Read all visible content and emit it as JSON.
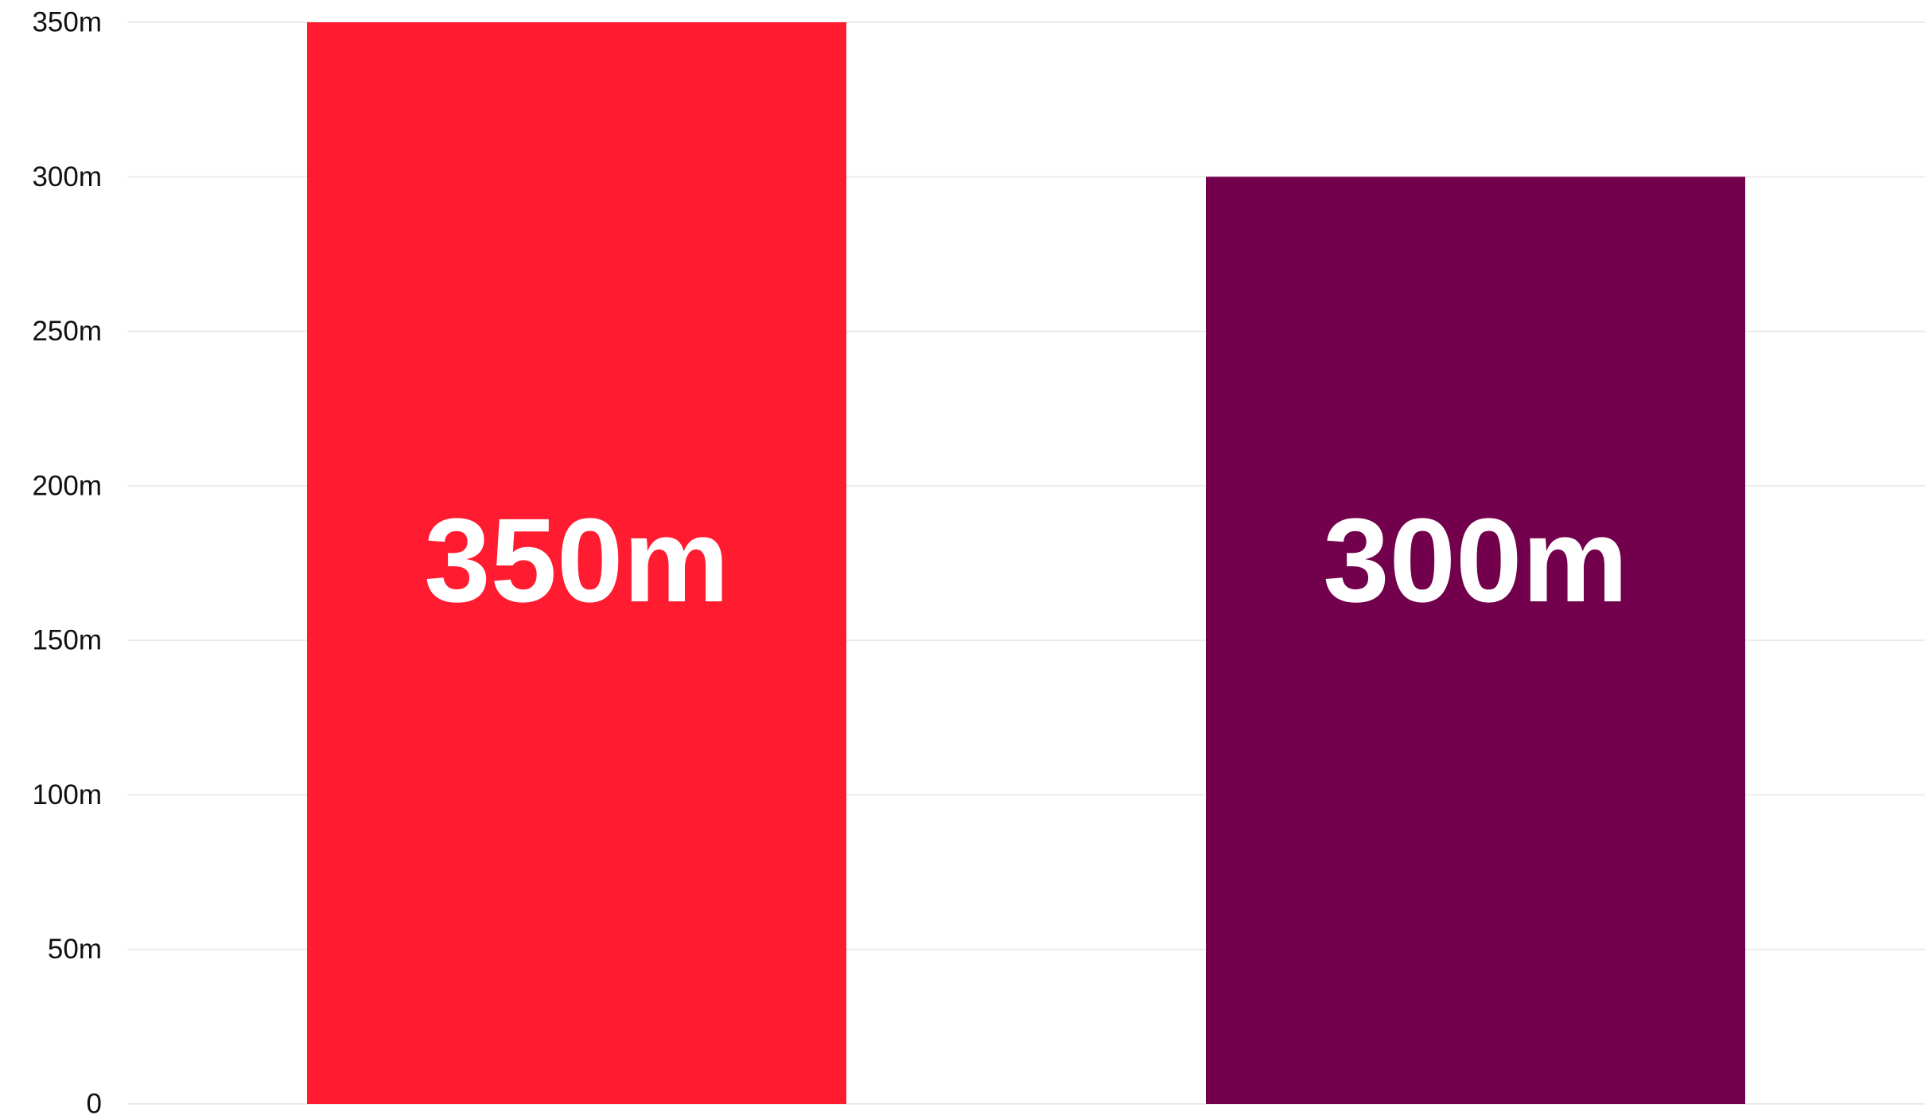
{
  "chart_data": {
    "type": "bar",
    "title": "",
    "xlabel": "",
    "ylabel": "",
    "ylim": [
      0,
      350
    ],
    "y_ticks": [
      0,
      50,
      100,
      150,
      200,
      250,
      300,
      350
    ],
    "y_tick_labels": [
      "0",
      "50m",
      "100m",
      "150m",
      "200m",
      "250m",
      "300m",
      "350m"
    ],
    "grid": true,
    "legend": "none",
    "categories": [
      "",
      ""
    ],
    "values": [
      350,
      300
    ],
    "data_labels": [
      "350m",
      "300m"
    ],
    "colors": [
      "#ff1c31",
      "#72004c"
    ]
  }
}
